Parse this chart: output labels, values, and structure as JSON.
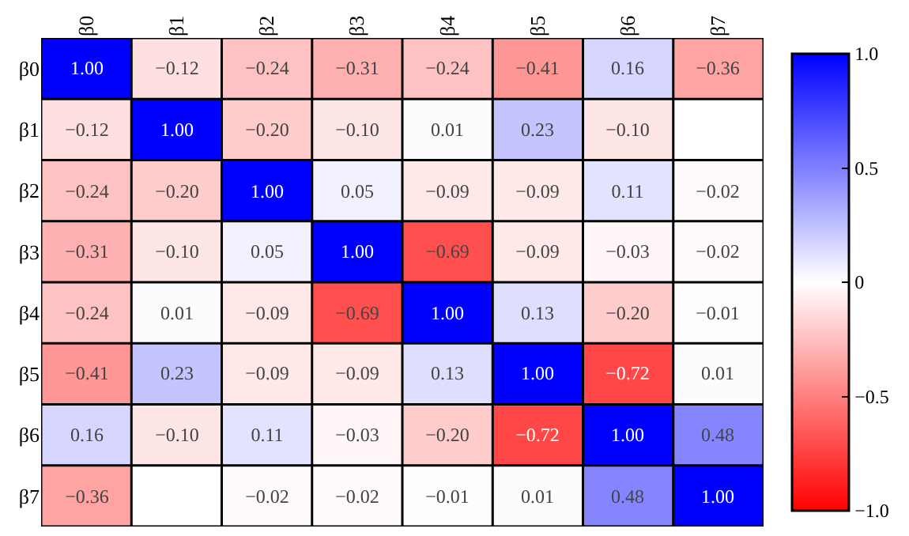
{
  "chart_data": {
    "type": "heatmap",
    "categories": [
      "β0",
      "β1",
      "β2",
      "β3",
      "β4",
      "β5",
      "β6",
      "β7"
    ],
    "y_categories": [
      "β0",
      "β1",
      "β2",
      "β3",
      "β4",
      "β5",
      "β6",
      "β7"
    ],
    "cells": [
      [
        1.0,
        -0.12,
        -0.24,
        -0.31,
        -0.24,
        -0.41,
        0.16,
        -0.36
      ],
      [
        -0.12,
        1.0,
        -0.2,
        -0.1,
        0.01,
        0.23,
        -0.1,
        null
      ],
      [
        -0.24,
        -0.2,
        1.0,
        0.05,
        -0.09,
        -0.09,
        0.11,
        -0.02
      ],
      [
        -0.31,
        -0.1,
        0.05,
        1.0,
        -0.69,
        -0.09,
        -0.03,
        -0.02
      ],
      [
        -0.24,
        0.01,
        -0.09,
        -0.69,
        1.0,
        0.13,
        -0.2,
        -0.01
      ],
      [
        -0.41,
        0.23,
        -0.09,
        -0.09,
        0.13,
        1.0,
        -0.72,
        0.01
      ],
      [
        0.16,
        -0.1,
        0.11,
        -0.03,
        -0.2,
        -0.72,
        1.0,
        0.48
      ],
      [
        -0.36,
        null,
        -0.02,
        -0.02,
        -0.01,
        0.01,
        0.48,
        1.0
      ]
    ],
    "cell_labels": [
      [
        "1.00",
        "−0.12",
        "−0.24",
        "−0.31",
        "−0.24",
        "−0.41",
        "0.16",
        "−0.36"
      ],
      [
        "−0.12",
        "1.00",
        "−0.20",
        "−0.10",
        "0.01",
        "0.23",
        "−0.10",
        null
      ],
      [
        "−0.24",
        "−0.20",
        "1.00",
        "0.05",
        "−0.09",
        "−0.09",
        "0.11",
        "−0.02"
      ],
      [
        "−0.31",
        "−0.10",
        "0.05",
        "1.00",
        "−0.69",
        "−0.09",
        "−0.03",
        "−0.02"
      ],
      [
        "−0.24",
        "0.01",
        "−0.09",
        "−0.69",
        "1.00",
        "0.13",
        "−0.20",
        "−0.01"
      ],
      [
        "−0.41",
        "0.23",
        "−0.09",
        "−0.09",
        "0.13",
        "1.00",
        "−0.72",
        "0.01"
      ],
      [
        "0.16",
        "−0.10",
        "0.11",
        "−0.03",
        "−0.20",
        "−0.72",
        "1.00",
        "0.48"
      ],
      [
        "−0.36",
        null,
        "−0.02",
        "−0.02",
        "−0.01",
        "0.01",
        "0.48",
        "1.00"
      ]
    ],
    "clim": [
      -1.0,
      1.0
    ],
    "cticks": [
      {
        "value": 1.0,
        "label": "1.0"
      },
      {
        "value": 0.5,
        "label": "0.5"
      },
      {
        "value": 0,
        "label": "0"
      },
      {
        "value": -0.5,
        "label": "−0.5"
      },
      {
        "value": -1.0,
        "label": "−1.0"
      }
    ]
  }
}
